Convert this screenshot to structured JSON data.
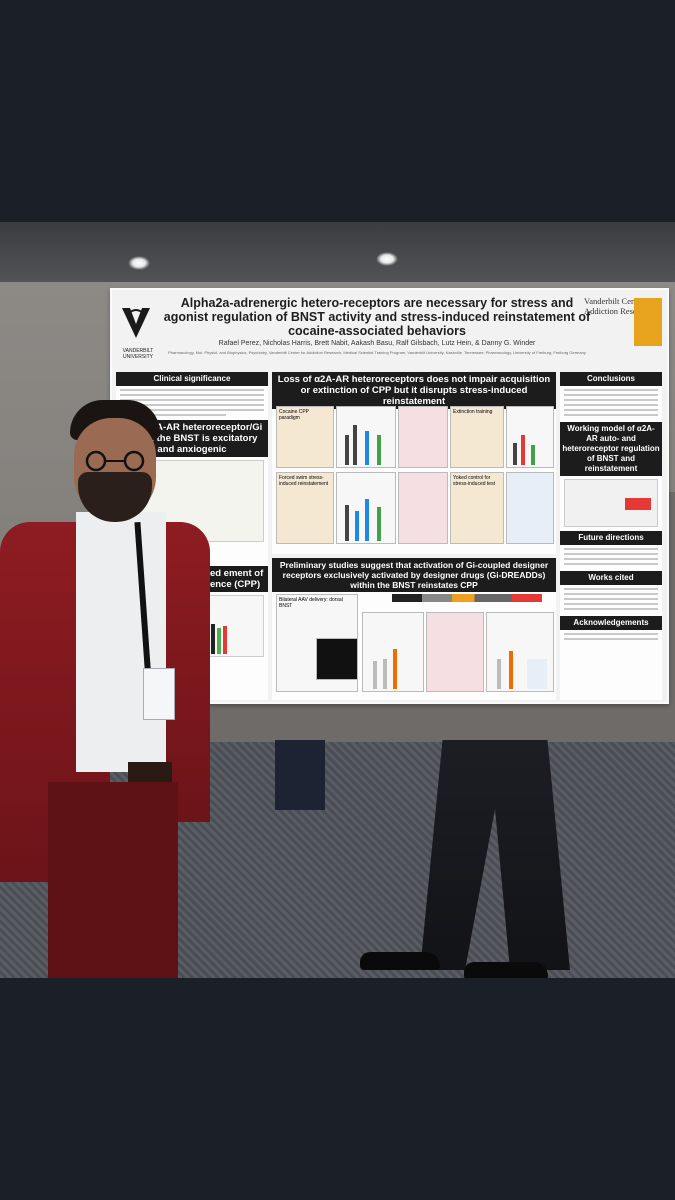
{
  "poster": {
    "title": "Alpha2a-adrenergic hetero-receptors are necessary for stress and agonist regulation of BNST activity and stress-induced reinstatement of cocaine-associated behaviors",
    "authors": "Rafael Perez, Nicholas Harris, Brett Nabit, Aakash Basu, Ralf Gilsbach, Lutz Hein, & Danny G. Winder",
    "affiliations": "Pharmacology, Mol. Physiol. and Biophysics, Psychiatry, Vanderbilt Center for Addiction Research, Medical Scientist Training Program, Vanderbilt University, Nashville, Tennessee; Pharmacology, University of Freiburg, Freiburg Germany",
    "university_logo_text": "VANDERBILT UNIVERSITY",
    "center_name": "Vanderbilt Center for Addiction Research",
    "sections": {
      "clinical_significance": "Clinical significance",
      "left_mid": "und: α2A-AR heteroreceptor/Gi within the BNST is excitatory and anxiogenic",
      "left_low": "blocks stress-induced ement of cocaine lace preference (CPP)",
      "center_top": "Loss of α2A-AR heteroreceptors does not impair acquisition or extinction of CPP but it disrupts stress-induced reinstatement",
      "center_bottom": "Preliminary studies suggest that activation of Gi-coupled designer receptors exclusively activated by designer drugs (Gi-DREADDs) within the BNST reinstates CPP",
      "conclusions": "Conclusions",
      "working_model": "Working model of α2A-AR auto- and heteroreceptor regulation of BNST and reinstatement",
      "future_directions": "Future directions",
      "works_cited": "Works cited",
      "acknowledgements": "Acknowledgements"
    },
    "figure_labels": {
      "cocaine_cpp": "Cocaine CPP paradigm",
      "extinction": "Extinction training",
      "forced_swim": "Forced swim stress-induced reinstatement",
      "yoked": "Yoked control for stress-induced test",
      "bilateral": "Bilateral AAV delivery: dorsal BNST"
    }
  },
  "colors": {
    "jacket": "#8e1c22",
    "poster_header": "#1c1c1c",
    "center_logo": "#e7a31e",
    "background": "#1b1f28"
  }
}
